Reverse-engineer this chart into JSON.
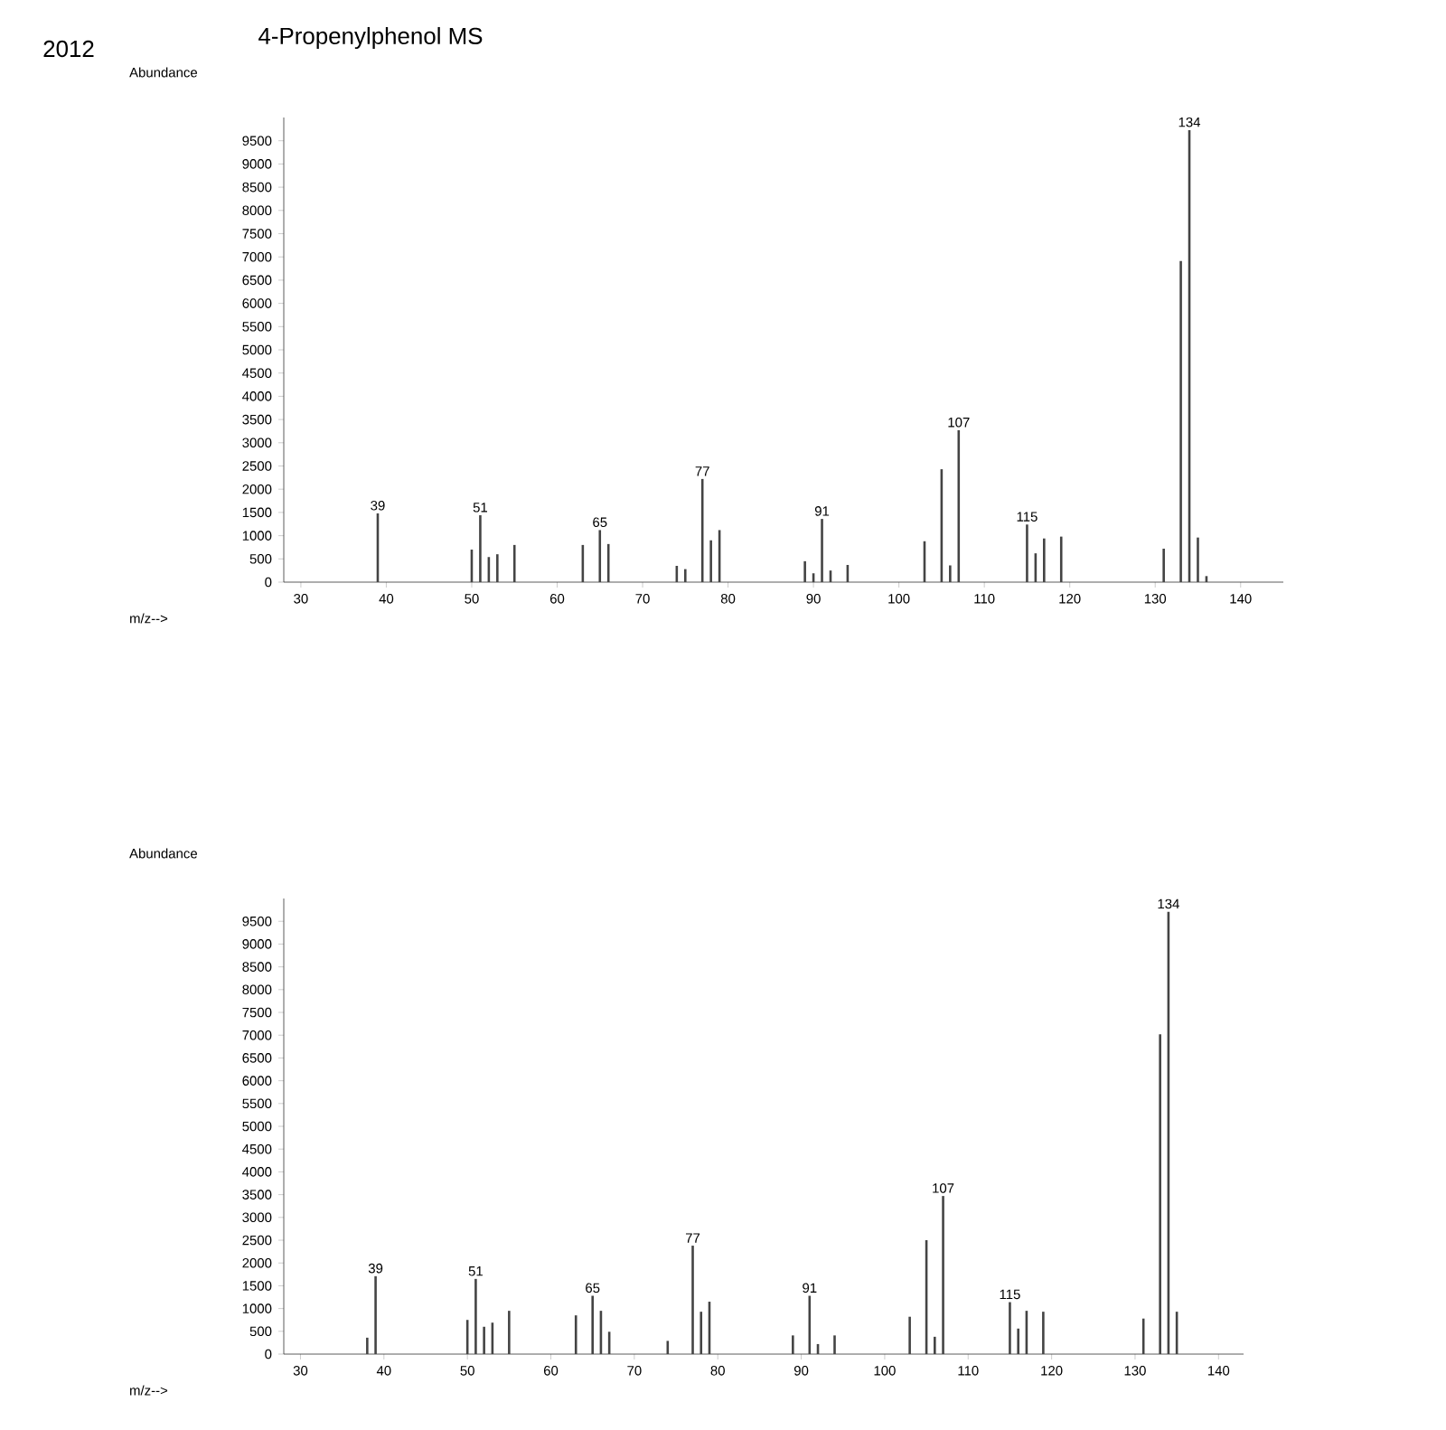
{
  "chart_data": [
    {
      "type": "bar",
      "title": "4-Propenylphenol MS",
      "xlabel": "m/z-->",
      "ylabel": "Abundance",
      "color": "#444444",
      "x": [
        39,
        50,
        51,
        52,
        53,
        55,
        63,
        65,
        66,
        74,
        75,
        77,
        78,
        79,
        89,
        90,
        91,
        92,
        94,
        103,
        105,
        106,
        107,
        115,
        116,
        117,
        119,
        131,
        133,
        134,
        135,
        136
      ],
      "values": [
        1480,
        700,
        1440,
        540,
        600,
        800,
        800,
        1120,
        820,
        350,
        280,
        2220,
        900,
        1120,
        450,
        190,
        1360,
        250,
        370,
        880,
        2430,
        360,
        3270,
        1240,
        620,
        940,
        980,
        720,
        6910,
        9730,
        960,
        130
      ],
      "xlim": [
        28,
        145
      ],
      "ylim": [
        0,
        10000
      ],
      "xticks": [
        30,
        40,
        50,
        60,
        70,
        80,
        90,
        100,
        110,
        120,
        130,
        140
      ],
      "yticks": [
        0,
        500,
        1000,
        1500,
        2000,
        2500,
        3000,
        3500,
        4000,
        4500,
        5000,
        5500,
        6000,
        6500,
        7000,
        7500,
        8000,
        8500,
        9000,
        9500
      ],
      "annotations": [
        "2012",
        {
          "text": "39",
          "x": 39,
          "y": 1480
        },
        {
          "text": "51",
          "x": 51,
          "y": 1440
        },
        {
          "text": "65",
          "x": 65,
          "y": 1120
        },
        {
          "text": "77",
          "x": 77,
          "y": 2220
        },
        {
          "text": "91",
          "x": 91,
          "y": 1360
        },
        {
          "text": "107",
          "x": 107,
          "y": 3270
        },
        {
          "text": "115",
          "x": 115,
          "y": 1240
        },
        {
          "text": "134",
          "x": 134,
          "y": 9730
        }
      ]
    },
    {
      "type": "bar",
      "xlabel": "m/z-->",
      "ylabel": "Abundance",
      "color": "#444444",
      "x": [
        38,
        39,
        50,
        51,
        52,
        53,
        55,
        63,
        65,
        66,
        67,
        74,
        77,
        78,
        79,
        89,
        91,
        92,
        94,
        103,
        105,
        106,
        107,
        115,
        116,
        117,
        119,
        131,
        133,
        134,
        135
      ],
      "values": [
        360,
        1710,
        750,
        1650,
        600,
        690,
        950,
        850,
        1280,
        950,
        490,
        290,
        2380,
        930,
        1150,
        410,
        1280,
        220,
        410,
        820,
        2500,
        380,
        3470,
        1140,
        560,
        950,
        930,
        780,
        7020,
        9710,
        930
      ],
      "xlim": [
        28,
        143
      ],
      "ylim": [
        0,
        10000
      ],
      "xticks": [
        30,
        40,
        50,
        60,
        70,
        80,
        90,
        100,
        110,
        120,
        130,
        140
      ],
      "yticks": [
        0,
        500,
        1000,
        1500,
        2000,
        2500,
        3000,
        3500,
        4000,
        4500,
        5000,
        5500,
        6000,
        6500,
        7000,
        7500,
        8000,
        8500,
        9000,
        9500
      ],
      "annotations": [
        {
          "text": "39",
          "x": 39,
          "y": 1710
        },
        {
          "text": "51",
          "x": 51,
          "y": 1650
        },
        {
          "text": "65",
          "x": 65,
          "y": 1280
        },
        {
          "text": "77",
          "x": 77,
          "y": 2380
        },
        {
          "text": "91",
          "x": 91,
          "y": 1280
        },
        {
          "text": "107",
          "x": 107,
          "y": 3470
        },
        {
          "text": "115",
          "x": 115,
          "y": 1140
        },
        {
          "text": "134",
          "x": 134,
          "y": 9710
        }
      ]
    }
  ]
}
